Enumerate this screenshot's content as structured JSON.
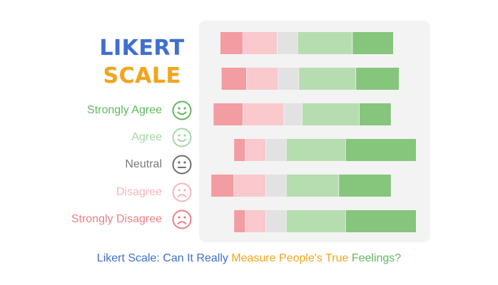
{
  "logo": {
    "line1": "LIKERT",
    "line2": "SCALE",
    "line1_color": "#3f6fd0",
    "line2_color": "#f2a51c"
  },
  "legend": [
    {
      "label": "Strongly Agree",
      "color": "#5fb85f",
      "icon": "smile-face-icon"
    },
    {
      "label": "Agree",
      "color": "#a4d8a4",
      "icon": "smile-face-icon"
    },
    {
      "label": "Neutral",
      "color": "#7a7a7a",
      "icon": "neutral-face-icon"
    },
    {
      "label": "Disagree",
      "color": "#f5b5bb",
      "icon": "frown-face-icon"
    },
    {
      "label": "Strongly Disagree",
      "color": "#ec7f86",
      "icon": "frown-face-icon"
    }
  ],
  "caption": {
    "part1": "Likert Scale: Can It Really ",
    "part2": "Measure People's True ",
    "part3": "Feelings?",
    "color1": "#3f6fd0",
    "color2": "#f2a51c",
    "color3": "#5fb85f"
  },
  "chart_data": {
    "type": "bar",
    "orientation": "horizontal",
    "stacked": true,
    "categories": [
      "",
      "",
      "",
      "",
      "",
      ""
    ],
    "series": [
      {
        "color": "#f39ca1",
        "values": [
          10,
          11,
          13,
          5,
          10,
          5
        ]
      },
      {
        "color": "#f9c9cd",
        "values": [
          15,
          14,
          18,
          9,
          14,
          9
        ]
      },
      {
        "color": "#e2e2e2",
        "values": [
          9,
          9,
          8,
          9,
          9,
          9
        ]
      },
      {
        "color": "#b6ddb0",
        "values": [
          24,
          25,
          25,
          26,
          23,
          26
        ]
      },
      {
        "color": "#86c57c",
        "values": [
          18,
          19,
          14,
          31,
          23,
          31
        ]
      }
    ],
    "start": [
      0,
      0.5,
      -3,
      6,
      -4,
      6
    ],
    "xlim": [
      -5,
      87
    ],
    "grid": false
  }
}
